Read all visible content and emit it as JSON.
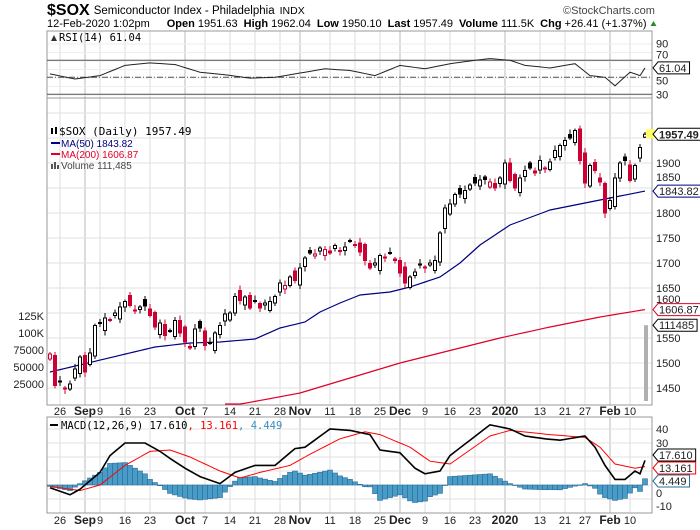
{
  "header": {
    "symbol": "$SOX",
    "name": "Semiconductor Index - Philadelphia",
    "exchange": "INDX",
    "copyright": "©StockCharts.com",
    "datetime": "12-Feb-2020 1:02pm",
    "open_label": "Open",
    "open": "1951.63",
    "high_label": "High",
    "high": "1962.04",
    "low_label": "Low",
    "low": "1950.10",
    "last_label": "Last",
    "last": "1957.49",
    "volume_label": "Volume",
    "volume": "111.5K",
    "chg_label": "Chg",
    "chg": "+26.41 (+1.37%)"
  },
  "colors": {
    "up": "#000000",
    "down": "#cc0033",
    "ma50": "#000080",
    "ma200": "#e0002a",
    "volume": "#b0b0b0",
    "macd": "#000000",
    "signal": "#ff0000",
    "histogram": "#4a9cc8",
    "highlight": "#ffff66"
  },
  "x_ticks": [
    {
      "label": "26",
      "index": 2,
      "month": false
    },
    {
      "label": "Sep",
      "index": 7,
      "month": true
    },
    {
      "label": "9",
      "index": 10,
      "month": false
    },
    {
      "label": "16",
      "index": 15,
      "month": false
    },
    {
      "label": "23",
      "index": 20,
      "month": false
    },
    {
      "label": "Oct",
      "index": 27,
      "month": true
    },
    {
      "label": "7",
      "index": 31,
      "month": false
    },
    {
      "label": "14",
      "index": 36,
      "month": false
    },
    {
      "label": "21",
      "index": 41,
      "month": false
    },
    {
      "label": "28",
      "index": 46,
      "month": false
    },
    {
      "label": "Nov",
      "index": 50,
      "month": true
    },
    {
      "label": "11",
      "index": 56,
      "month": false
    },
    {
      "label": "18",
      "index": 61,
      "month": false
    },
    {
      "label": "25",
      "index": 66,
      "month": false
    },
    {
      "label": "Dec",
      "index": 70,
      "month": true
    },
    {
      "label": "9",
      "index": 75,
      "month": false
    },
    {
      "label": "16",
      "index": 80,
      "month": false
    },
    {
      "label": "23",
      "index": 85,
      "month": false
    },
    {
      "label": "2020",
      "index": 91,
      "month": true
    },
    {
      "label": "13",
      "index": 98,
      "month": false
    },
    {
      "label": "21",
      "index": 103,
      "month": false
    },
    {
      "label": "27",
      "index": 107,
      "month": false
    },
    {
      "label": "Feb",
      "index": 112,
      "month": true
    },
    {
      "label": "10",
      "index": 116,
      "month": false
    }
  ],
  "chart_data": [
    {
      "type": "candlestick",
      "title": "$SOX (Daily) 1957.49",
      "legend": {
        "ma50": "MA(50) 1843.82",
        "ma200": "MA(200) 1606.87",
        "volume": "Volume 111,485"
      },
      "last_ohlc": {
        "open": 1951.63,
        "high": 1962.04,
        "low": 1950.1,
        "close": 1957.49
      },
      "close": [
        1518,
        1455,
        1462,
        1448,
        1458,
        1488,
        1512,
        1482,
        1520,
        1575,
        1580,
        1590,
        1586,
        1600,
        1612,
        1623,
        1615,
        1604,
        1612,
        1614,
        1595,
        1572,
        1580,
        1555,
        1565,
        1585,
        1560,
        1542,
        1530,
        1568,
        1570,
        1535,
        1540,
        1560,
        1575,
        1598,
        1600,
        1633,
        1625,
        1632,
        1610,
        1625,
        1610,
        1620,
        1623,
        1633,
        1660,
        1655,
        1672,
        1665,
        1690,
        1710,
        1720,
        1718,
        1730,
        1727,
        1720,
        1735,
        1725,
        1732,
        1745,
        1737,
        1722,
        1705,
        1690,
        1700,
        1715,
        1712,
        1720,
        1705,
        1680,
        1660,
        1672,
        1682,
        1698,
        1690,
        1700,
        1705,
        1760,
        1810,
        1818,
        1837,
        1838,
        1845,
        1856,
        1860,
        1866,
        1867,
        1862,
        1850,
        1870,
        1900,
        1865,
        1850,
        1870,
        1885,
        1890,
        1880,
        1905,
        1890,
        1902,
        1925,
        1935,
        1945,
        1950,
        1965,
        1905,
        1860,
        1895,
        1885,
        1862,
        1800,
        1825,
        1870,
        1900,
        1905,
        1865,
        1895,
        1931,
        1957.49
      ],
      "ma50": [
        [
          0,
          1482
        ],
        [
          21,
          1532
        ],
        [
          28,
          1540
        ],
        [
          34,
          1542
        ],
        [
          41,
          1548
        ],
        [
          46,
          1570
        ],
        [
          51,
          1582
        ],
        [
          54,
          1602
        ],
        [
          58,
          1620
        ],
        [
          62,
          1636
        ],
        [
          68,
          1642
        ],
        [
          72,
          1652
        ],
        [
          78,
          1672
        ],
        [
          82,
          1700
        ],
        [
          86,
          1736
        ],
        [
          92,
          1776
        ],
        [
          100,
          1806
        ],
        [
          107,
          1820
        ],
        [
          113,
          1832
        ],
        [
          119,
          1843.82
        ]
      ],
      "ma200": [
        [
          35,
          1412
        ],
        [
          50,
          1440
        ],
        [
          60,
          1470
        ],
        [
          70,
          1500
        ],
        [
          80,
          1525
        ],
        [
          90,
          1550
        ],
        [
          100,
          1572
        ],
        [
          110,
          1592
        ],
        [
          119,
          1606.87
        ]
      ],
      "last_volume": 111485,
      "y_ticks": [
        1450,
        1500,
        1550,
        1600,
        1650,
        1700,
        1750,
        1800,
        1850,
        1900
      ],
      "volume_ticks": [
        {
          "v": 25000,
          "label": "25000"
        },
        {
          "v": 50000,
          "label": "50000"
        },
        {
          "v": 75000,
          "label": "75000"
        },
        {
          "v": 100000,
          "label": "100K"
        },
        {
          "v": 125000,
          "label": "125K"
        }
      ],
      "callouts": {
        "last": "1957.49",
        "ma50": "1843.82",
        "ma200": "1606.87",
        "volume": "111485"
      }
    },
    {
      "type": "line",
      "title": "RSI(14) 61.04",
      "values": [
        [
          0,
          54
        ],
        [
          5,
          48
        ],
        [
          10,
          52
        ],
        [
          15,
          64
        ],
        [
          20,
          67
        ],
        [
          25,
          65
        ],
        [
          30,
          56
        ],
        [
          35,
          53
        ],
        [
          40,
          49
        ],
        [
          45,
          50
        ],
        [
          50,
          55
        ],
        [
          55,
          60
        ],
        [
          60,
          58
        ],
        [
          65,
          52
        ],
        [
          70,
          64
        ],
        [
          75,
          60
        ],
        [
          80,
          66
        ],
        [
          85,
          70
        ],
        [
          88,
          72
        ],
        [
          92,
          70
        ],
        [
          95,
          64
        ],
        [
          100,
          61
        ],
        [
          105,
          66
        ],
        [
          108,
          52
        ],
        [
          111,
          50
        ],
        [
          113,
          40
        ],
        [
          116,
          56
        ],
        [
          118,
          52
        ],
        [
          119,
          61.04
        ]
      ],
      "y_ticks": [
        30,
        50,
        70,
        90
      ],
      "bands": [
        30,
        50,
        70
      ],
      "callout": "61.04"
    },
    {
      "type": "line",
      "title": "MACD(12,26,9)",
      "legend": {
        "macd": "17.610",
        "signal": "13.161",
        "histogram": "4.449"
      },
      "macd": [
        [
          0,
          -2
        ],
        [
          4,
          -7
        ],
        [
          6,
          -3
        ],
        [
          10,
          9
        ],
        [
          12,
          21
        ],
        [
          15,
          30
        ],
        [
          19,
          30
        ],
        [
          22,
          24
        ],
        [
          24,
          19
        ],
        [
          27,
          12
        ],
        [
          30,
          6
        ],
        [
          34,
          1
        ],
        [
          37,
          9
        ],
        [
          41,
          14
        ],
        [
          45,
          14
        ],
        [
          49,
          26
        ],
        [
          51,
          27
        ],
        [
          56,
          40
        ],
        [
          60,
          39
        ],
        [
          64,
          36
        ],
        [
          66,
          25
        ],
        [
          70,
          23
        ],
        [
          73,
          12
        ],
        [
          75,
          8
        ],
        [
          78,
          10
        ],
        [
          80,
          21
        ],
        [
          84,
          32
        ],
        [
          88,
          43
        ],
        [
          92,
          40
        ],
        [
          95,
          35
        ],
        [
          99,
          33
        ],
        [
          102,
          32
        ],
        [
          107,
          35
        ],
        [
          109,
          27
        ],
        [
          111,
          14
        ],
        [
          113,
          4
        ],
        [
          115,
          4
        ],
        [
          117,
          10
        ],
        [
          118,
          8
        ],
        [
          119,
          17.61
        ]
      ],
      "signal": [
        [
          0,
          -1
        ],
        [
          6,
          -4
        ],
        [
          10,
          0
        ],
        [
          15,
          14
        ],
        [
          20,
          24
        ],
        [
          24,
          25
        ],
        [
          28,
          20
        ],
        [
          34,
          10
        ],
        [
          38,
          5
        ],
        [
          42,
          9
        ],
        [
          48,
          14
        ],
        [
          52,
          22
        ],
        [
          58,
          33
        ],
        [
          63,
          38
        ],
        [
          66,
          36
        ],
        [
          72,
          27
        ],
        [
          76,
          17
        ],
        [
          80,
          15
        ],
        [
          84,
          25
        ],
        [
          88,
          35
        ],
        [
          92,
          39
        ],
        [
          100,
          36
        ],
        [
          107,
          34
        ],
        [
          110,
          27
        ],
        [
          113,
          15
        ],
        [
          117,
          12
        ],
        [
          119,
          13.161
        ]
      ],
      "y_ticks": [
        -10,
        0,
        10,
        20,
        30,
        40
      ]
    }
  ]
}
